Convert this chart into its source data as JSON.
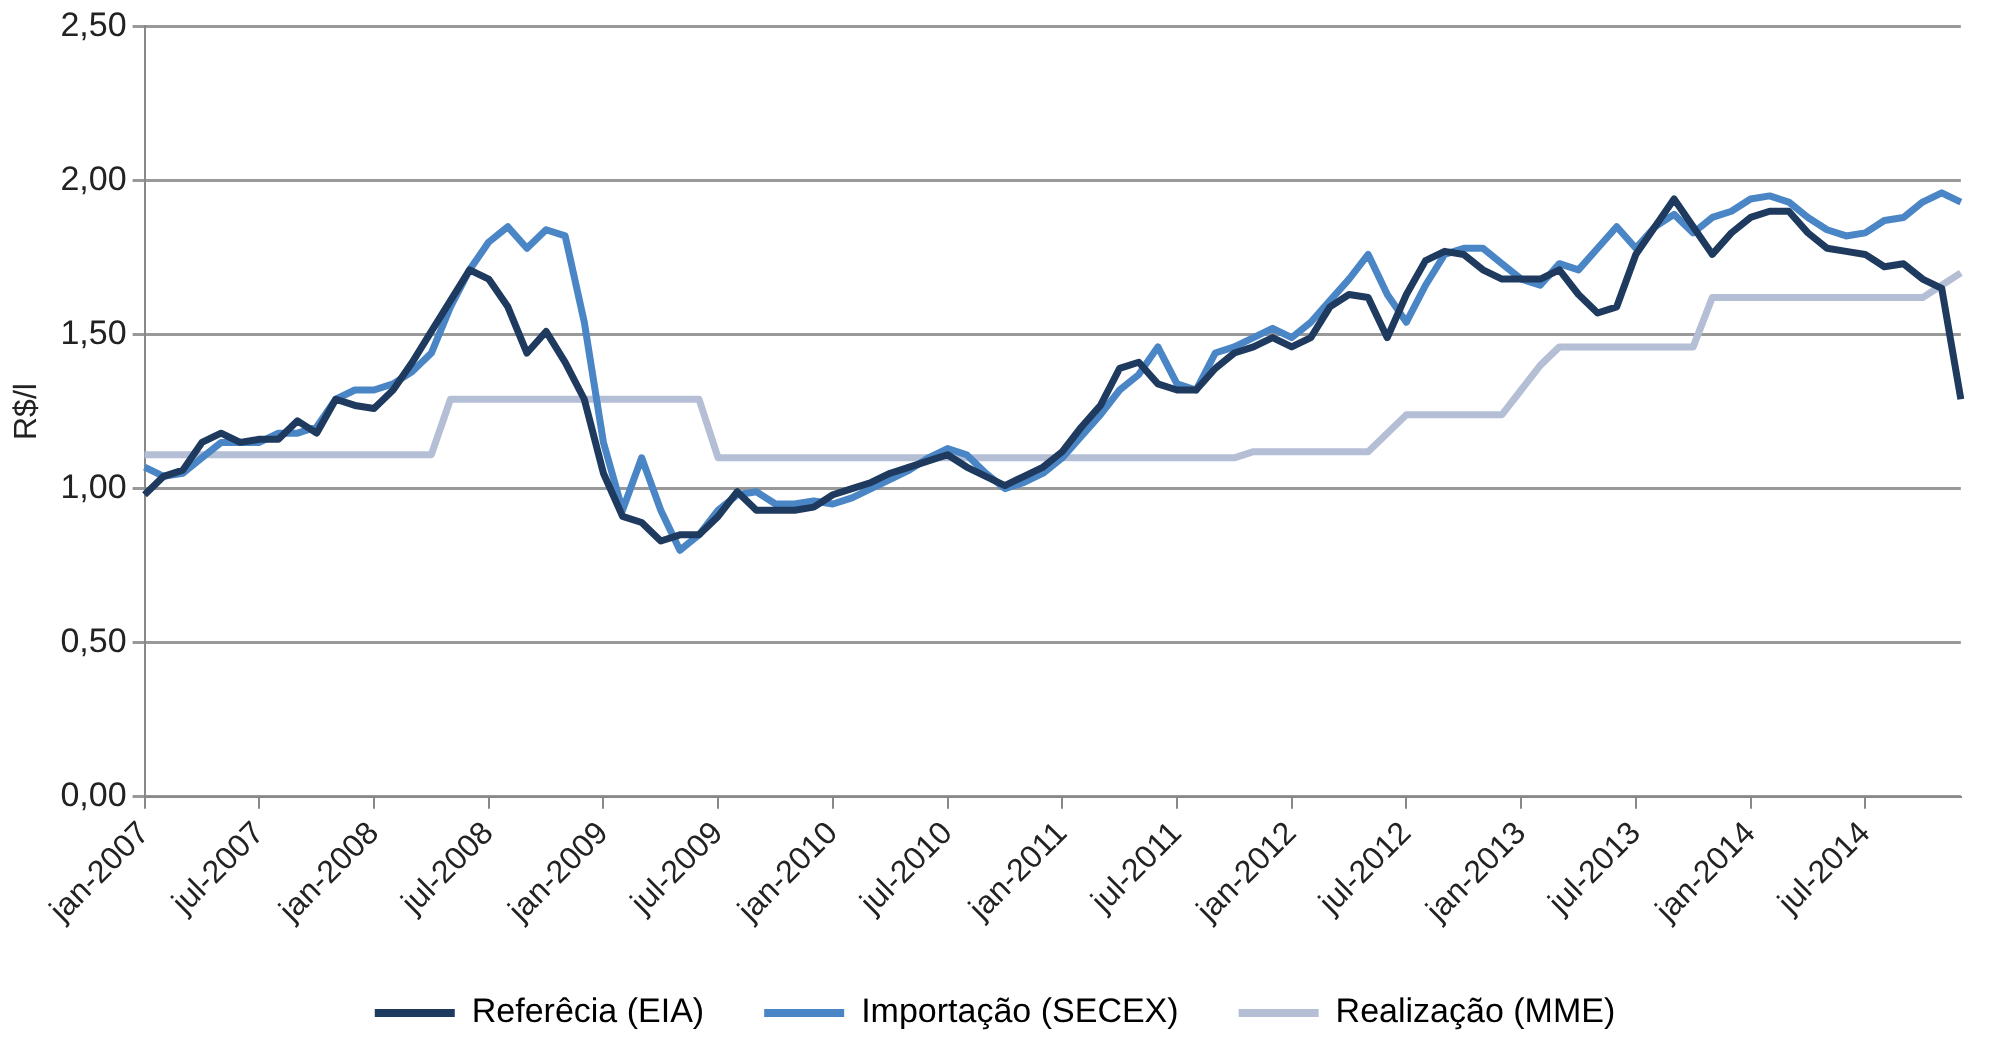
{
  "chart_data": {
    "type": "line",
    "ylabel": "R$/l",
    "categories": [
      "jan-2007",
      null,
      null,
      null,
      null,
      null,
      "jul-2007",
      null,
      null,
      null,
      null,
      null,
      "jan-2008",
      null,
      null,
      null,
      null,
      null,
      "jul-2008",
      null,
      null,
      null,
      null,
      null,
      "jan-2009",
      null,
      null,
      null,
      null,
      null,
      "jul-2009",
      null,
      null,
      null,
      null,
      null,
      "jan-2010",
      null,
      null,
      null,
      null,
      null,
      "jul-2010",
      null,
      null,
      null,
      null,
      null,
      "jan-2011",
      null,
      null,
      null,
      null,
      null,
      "jul-2011",
      null,
      null,
      null,
      null,
      null,
      "jan-2012",
      null,
      null,
      null,
      null,
      null,
      "jul-2012",
      null,
      null,
      null,
      null,
      null,
      "jan-2013",
      null,
      null,
      null,
      null,
      null,
      "jul-2013",
      null,
      null,
      null,
      null,
      null,
      "jan-2014",
      null,
      null,
      null,
      null,
      null,
      "jul-2014",
      null,
      null,
      null,
      null,
      null
    ],
    "series": [
      {
        "name": "Referêcia (EIA)",
        "color": "#1f3a5f",
        "values": [
          0.98,
          1.04,
          1.06,
          1.15,
          1.18,
          1.15,
          1.16,
          1.16,
          1.22,
          1.18,
          1.29,
          1.27,
          1.26,
          1.32,
          1.41,
          1.51,
          1.61,
          1.71,
          1.68,
          1.59,
          1.44,
          1.51,
          1.41,
          1.29,
          1.05,
          0.91,
          0.89,
          0.83,
          0.85,
          0.85,
          0.91,
          0.99,
          0.93,
          0.93,
          0.93,
          0.94,
          0.98,
          1.0,
          1.02,
          1.05,
          1.07,
          1.09,
          1.11,
          1.07,
          1.04,
          1.01,
          1.04,
          1.07,
          1.12,
          1.2,
          1.27,
          1.39,
          1.41,
          1.34,
          1.32,
          1.32,
          1.39,
          1.44,
          1.46,
          1.49,
          1.46,
          1.49,
          1.59,
          1.63,
          1.62,
          1.49,
          1.63,
          1.74,
          1.77,
          1.76,
          1.71,
          1.68,
          1.68,
          1.68,
          1.71,
          1.63,
          1.57,
          1.59,
          1.76,
          1.85,
          1.94,
          1.85,
          1.76,
          1.83,
          1.88,
          1.9,
          1.9,
          1.83,
          1.78,
          1.77,
          1.76,
          1.72,
          1.73,
          1.68,
          1.65,
          1.29
        ]
      },
      {
        "name": "Importação (SECEX)",
        "color": "#4a86c5",
        "values": [
          1.07,
          1.04,
          1.05,
          1.1,
          1.15,
          1.15,
          1.15,
          1.18,
          1.18,
          1.2,
          1.29,
          1.32,
          1.32,
          1.34,
          1.38,
          1.44,
          1.59,
          1.71,
          1.8,
          1.85,
          1.78,
          1.84,
          1.82,
          1.54,
          1.15,
          0.93,
          1.1,
          0.93,
          0.8,
          0.85,
          0.93,
          0.98,
          0.99,
          0.95,
          0.95,
          0.96,
          0.95,
          0.97,
          1.0,
          1.03,
          1.06,
          1.1,
          1.13,
          1.11,
          1.05,
          1.0,
          1.02,
          1.05,
          1.1,
          1.17,
          1.24,
          1.32,
          1.37,
          1.46,
          1.34,
          1.32,
          1.44,
          1.46,
          1.49,
          1.52,
          1.49,
          1.54,
          1.61,
          1.68,
          1.76,
          1.63,
          1.54,
          1.66,
          1.76,
          1.78,
          1.78,
          1.73,
          1.68,
          1.66,
          1.73,
          1.71,
          1.78,
          1.85,
          1.78,
          1.85,
          1.89,
          1.83,
          1.88,
          1.9,
          1.94,
          1.95,
          1.93,
          1.88,
          1.84,
          1.82,
          1.83,
          1.87,
          1.88,
          1.93,
          1.96,
          1.93
        ]
      },
      {
        "name": "Realização (MME)",
        "color": "#b4bfd6",
        "values": [
          1.11,
          1.11,
          1.11,
          1.11,
          1.11,
          1.11,
          1.11,
          1.11,
          1.11,
          1.11,
          1.11,
          1.11,
          1.11,
          1.11,
          1.11,
          1.11,
          1.29,
          1.29,
          1.29,
          1.29,
          1.29,
          1.29,
          1.29,
          1.29,
          1.29,
          1.29,
          1.29,
          1.29,
          1.29,
          1.29,
          1.1,
          1.1,
          1.1,
          1.1,
          1.1,
          1.1,
          1.1,
          1.1,
          1.1,
          1.1,
          1.1,
          1.1,
          1.1,
          1.1,
          1.1,
          1.1,
          1.1,
          1.1,
          1.1,
          1.1,
          1.1,
          1.1,
          1.1,
          1.1,
          1.1,
          1.1,
          1.1,
          1.1,
          1.12,
          1.12,
          1.12,
          1.12,
          1.12,
          1.12,
          1.12,
          1.18,
          1.24,
          1.24,
          1.24,
          1.24,
          1.24,
          1.24,
          1.32,
          1.4,
          1.46,
          1.46,
          1.46,
          1.46,
          1.46,
          1.46,
          1.46,
          1.46,
          1.62,
          1.62,
          1.62,
          1.62,
          1.62,
          1.62,
          1.62,
          1.62,
          1.62,
          1.62,
          1.62,
          1.62,
          1.66,
          1.7
        ]
      }
    ],
    "ylim": [
      0,
      2.5
    ],
    "yticks": [
      {
        "value": 0,
        "label": "0,00"
      },
      {
        "value": 0.5,
        "label": "0,50"
      },
      {
        "value": 1,
        "label": "1,00"
      },
      {
        "value": 1.5,
        "label": "1,50"
      },
      {
        "value": 2,
        "label": "2,00"
      },
      {
        "value": 2.5,
        "label": "2,50"
      }
    ],
    "grid": "y",
    "legend": "bottom",
    "marker": "none",
    "line_style": "solid"
  }
}
